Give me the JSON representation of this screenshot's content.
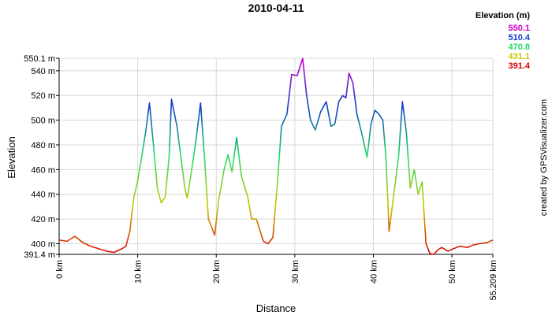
{
  "chart_data": {
    "type": "line",
    "title": "2010-04-11",
    "x_label": "Distance",
    "y_label": "Elevation",
    "credit": "created by GPSVisualizer.com",
    "legend_title": "Elevation (m)",
    "color_scale": [
      {
        "value": 550.1,
        "color": "#cc00cc"
      },
      {
        "value": 510.4,
        "color": "#1040c8"
      },
      {
        "value": 470.8,
        "color": "#22dd66"
      },
      {
        "value": 431.1,
        "color": "#c8c800"
      },
      {
        "value": 391.4,
        "color": "#dd0000"
      }
    ],
    "x": [
      0,
      1,
      2,
      3,
      4,
      5,
      6,
      7,
      8,
      8.5,
      9,
      9.5,
      10,
      10.5,
      11,
      11.5,
      12,
      12.5,
      13,
      13.5,
      14,
      14.3,
      15,
      15.5,
      16,
      16.3,
      17,
      17.5,
      18,
      18.5,
      19,
      19.8,
      20.3,
      21,
      21.5,
      22,
      22.6,
      23.2,
      24,
      24.5,
      25.1,
      26,
      26.6,
      27.2,
      27.8,
      28.3,
      29,
      29.6,
      30.3,
      31,
      31.5,
      32,
      32.6,
      33.3,
      34,
      34.6,
      35.1,
      35.6,
      36.1,
      36.5,
      36.9,
      37.4,
      37.9,
      38.5,
      39.2,
      39.7,
      40.2,
      40.7,
      41.2,
      41.6,
      42,
      42.6,
      43.2,
      43.7,
      44.2,
      44.7,
      45.2,
      45.7,
      46.2,
      46.7,
      47.2,
      47.7,
      48.2,
      48.7,
      49.5,
      50.2,
      51,
      52,
      52.7,
      53.5,
      54.5,
      55.209
    ],
    "values": [
      403,
      402,
      406,
      401,
      398,
      396,
      394,
      393,
      396,
      398,
      410,
      437,
      451,
      470,
      490,
      514,
      480,
      445,
      433,
      438,
      470,
      517,
      495,
      470,
      445,
      437,
      465,
      488,
      514,
      470,
      420,
      407,
      435,
      460,
      472,
      458,
      486,
      455,
      438,
      420,
      420,
      402,
      400,
      405,
      450,
      495,
      505,
      537,
      536,
      550,
      520,
      500,
      492,
      507,
      515,
      495,
      497,
      515,
      520,
      518,
      538,
      530,
      505,
      490,
      470,
      497,
      508,
      505,
      500,
      470,
      410,
      440,
      470,
      515,
      490,
      445,
      460,
      440,
      450,
      400,
      392,
      391.4,
      395,
      397,
      394,
      396,
      398,
      397,
      399,
      400,
      401,
      403
    ],
    "xlim": [
      0,
      55.209
    ],
    "ylim": [
      391.4,
      550.1
    ],
    "xticks": [
      {
        "value": 0,
        "label": "0 km"
      },
      {
        "value": 10,
        "label": "10 km"
      },
      {
        "value": 20,
        "label": "20 km"
      },
      {
        "value": 30,
        "label": "30 km"
      },
      {
        "value": 40,
        "label": "40 km"
      },
      {
        "value": 50,
        "label": "50 km"
      },
      {
        "value": 55.209,
        "label": "55.209 km"
      }
    ],
    "yticks": [
      {
        "value": 391.4,
        "label": "391.4 m"
      },
      {
        "value": 400,
        "label": "400 m"
      },
      {
        "value": 420,
        "label": "420 m"
      },
      {
        "value": 440,
        "label": "440 m"
      },
      {
        "value": 460,
        "label": "460 m"
      },
      {
        "value": 480,
        "label": "480 m"
      },
      {
        "value": 500,
        "label": "500 m"
      },
      {
        "value": 520,
        "label": "520 m"
      },
      {
        "value": 540,
        "label": "540 m"
      },
      {
        "value": 550.1,
        "label": "550.1 m"
      }
    ],
    "grid": true
  }
}
